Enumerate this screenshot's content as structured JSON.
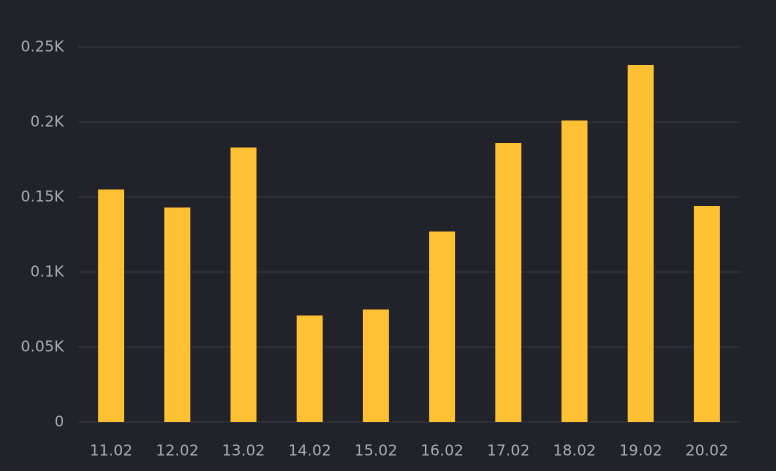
{
  "chart_data": {
    "type": "bar",
    "categories": [
      "11.02",
      "12.02",
      "13.02",
      "14.02",
      "15.02",
      "16.02",
      "17.02",
      "18.02",
      "19.02",
      "20.02"
    ],
    "values": [
      155,
      143,
      183,
      71,
      75,
      127,
      186,
      201,
      238,
      144
    ],
    "color": "#fec133",
    "ylim": [
      0,
      250
    ],
    "yticks": [
      0,
      {
        "value": 50,
        "label": "0.05K"
      },
      {
        "value": 100,
        "label": "0.1K"
      },
      {
        "value": 150,
        "label": "0.15K"
      },
      {
        "value": 200,
        "label": "0.2K"
      },
      {
        "value": 250,
        "label": "0.25K"
      }
    ],
    "grid": true
  }
}
